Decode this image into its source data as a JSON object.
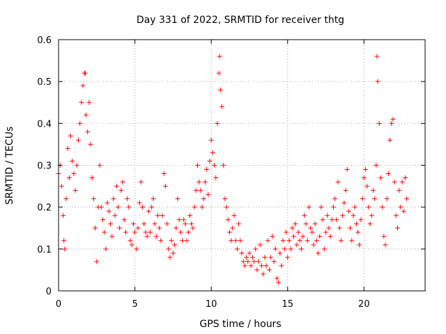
{
  "chart_data": {
    "type": "scatter",
    "title": "Day 331 of 2022, SRMTID for receiver thtg",
    "xlabel": "GPS time / hours",
    "ylabel": "SRMTID / TECUs",
    "xlim": [
      0,
      24
    ],
    "ylim": [
      0,
      0.6
    ],
    "xticks": [
      0,
      5,
      10,
      15,
      20
    ],
    "yticks": [
      0,
      0.1,
      0.2,
      0.3,
      0.4,
      0.5,
      0.6
    ],
    "xtick_labels": [
      "0",
      "5",
      "10",
      "15",
      "20"
    ],
    "ytick_labels": [
      "0",
      "0.1",
      "0.2",
      "0.3",
      "0.4",
      "0.5",
      "0.6"
    ],
    "grid": true,
    "marker": "+",
    "marker_color": "#ff0000",
    "series": [
      {
        "name": "SRMTID",
        "points": [
          [
            0.0,
            0.28
          ],
          [
            0.1,
            0.3
          ],
          [
            0.2,
            0.25
          ],
          [
            0.3,
            0.18
          ],
          [
            0.35,
            0.12
          ],
          [
            0.4,
            0.1
          ],
          [
            0.5,
            0.22
          ],
          [
            0.6,
            0.34
          ],
          [
            0.7,
            0.27
          ],
          [
            0.8,
            0.37
          ],
          [
            0.9,
            0.31
          ],
          [
            1.0,
            0.28
          ],
          [
            1.1,
            0.24
          ],
          [
            1.2,
            0.3
          ],
          [
            1.3,
            0.36
          ],
          [
            1.4,
            0.4
          ],
          [
            1.5,
            0.45
          ],
          [
            1.6,
            0.49
          ],
          [
            1.7,
            0.52
          ],
          [
            1.75,
            0.52
          ],
          [
            1.8,
            0.42
          ],
          [
            1.9,
            0.38
          ],
          [
            2.0,
            0.45
          ],
          [
            2.1,
            0.35
          ],
          [
            2.2,
            0.27
          ],
          [
            2.3,
            0.22
          ],
          [
            2.4,
            0.15
          ],
          [
            2.5,
            0.07
          ],
          [
            2.6,
            0.2
          ],
          [
            2.7,
            0.3
          ],
          [
            2.8,
            0.2
          ],
          [
            2.9,
            0.17
          ],
          [
            3.0,
            0.14
          ],
          [
            3.1,
            0.1
          ],
          [
            3.2,
            0.21
          ],
          [
            3.3,
            0.19
          ],
          [
            3.4,
            0.16
          ],
          [
            3.5,
            0.13
          ],
          [
            3.6,
            0.22
          ],
          [
            3.7,
            0.18
          ],
          [
            3.8,
            0.25
          ],
          [
            3.9,
            0.2
          ],
          [
            4.0,
            0.15
          ],
          [
            4.1,
            0.24
          ],
          [
            4.2,
            0.26
          ],
          [
            4.3,
            0.17
          ],
          [
            4.4,
            0.14
          ],
          [
            4.5,
            0.22
          ],
          [
            4.6,
            0.2
          ],
          [
            4.7,
            0.12
          ],
          [
            4.8,
            0.11
          ],
          [
            4.9,
            0.16
          ],
          [
            5.0,
            0.14
          ],
          [
            5.1,
            0.1
          ],
          [
            5.2,
            0.15
          ],
          [
            5.3,
            0.21
          ],
          [
            5.4,
            0.26
          ],
          [
            5.5,
            0.2
          ],
          [
            5.6,
            0.16
          ],
          [
            5.7,
            0.14
          ],
          [
            5.8,
            0.13
          ],
          [
            5.9,
            0.19
          ],
          [
            6.0,
            0.14
          ],
          [
            6.1,
            0.2
          ],
          [
            6.2,
            0.22
          ],
          [
            6.3,
            0.16
          ],
          [
            6.4,
            0.13
          ],
          [
            6.5,
            0.18
          ],
          [
            6.6,
            0.15
          ],
          [
            6.7,
            0.12
          ],
          [
            6.8,
            0.18
          ],
          [
            6.9,
            0.28
          ],
          [
            7.0,
            0.25
          ],
          [
            7.1,
            0.16
          ],
          [
            7.2,
            0.1
          ],
          [
            7.3,
            0.08
          ],
          [
            7.4,
            0.12
          ],
          [
            7.5,
            0.09
          ],
          [
            7.6,
            0.11
          ],
          [
            7.7,
            0.15
          ],
          [
            7.8,
            0.22
          ],
          [
            7.9,
            0.17
          ],
          [
            8.0,
            0.14
          ],
          [
            8.1,
            0.12
          ],
          [
            8.2,
            0.17
          ],
          [
            8.3,
            0.16
          ],
          [
            8.4,
            0.12
          ],
          [
            8.5,
            0.14
          ],
          [
            8.6,
            0.18
          ],
          [
            8.7,
            0.16
          ],
          [
            8.8,
            0.15
          ],
          [
            8.9,
            0.2
          ],
          [
            9.0,
            0.24
          ],
          [
            9.1,
            0.3
          ],
          [
            9.2,
            0.26
          ],
          [
            9.3,
            0.24
          ],
          [
            9.4,
            0.2
          ],
          [
            9.5,
            0.22
          ],
          [
            9.6,
            0.26
          ],
          [
            9.7,
            0.29
          ],
          [
            9.8,
            0.23
          ],
          [
            9.9,
            0.31
          ],
          [
            10.0,
            0.36
          ],
          [
            10.1,
            0.33
          ],
          [
            10.2,
            0.3
          ],
          [
            10.3,
            0.27
          ],
          [
            10.4,
            0.4
          ],
          [
            10.5,
            0.52
          ],
          [
            10.55,
            0.56
          ],
          [
            10.6,
            0.48
          ],
          [
            10.7,
            0.44
          ],
          [
            10.8,
            0.3
          ],
          [
            10.9,
            0.22
          ],
          [
            11.0,
            0.2
          ],
          [
            11.1,
            0.17
          ],
          [
            11.2,
            0.14
          ],
          [
            11.3,
            0.12
          ],
          [
            11.4,
            0.15
          ],
          [
            11.5,
            0.18
          ],
          [
            11.6,
            0.12
          ],
          [
            11.7,
            0.1
          ],
          [
            11.8,
            0.16
          ],
          [
            11.9,
            0.12
          ],
          [
            12.0,
            0.09
          ],
          [
            12.1,
            0.07
          ],
          [
            12.2,
            0.06
          ],
          [
            12.3,
            0.08
          ],
          [
            12.4,
            0.07
          ],
          [
            12.5,
            0.09
          ],
          [
            12.6,
            0.06
          ],
          [
            12.7,
            0.08
          ],
          [
            12.8,
            0.07
          ],
          [
            12.9,
            0.1
          ],
          [
            13.0,
            0.05
          ],
          [
            13.1,
            0.07
          ],
          [
            13.2,
            0.11
          ],
          [
            13.3,
            0.06
          ],
          [
            13.4,
            0.04
          ],
          [
            13.5,
            0.08
          ],
          [
            13.6,
            0.06
          ],
          [
            13.7,
            0.12
          ],
          [
            13.8,
            0.05
          ],
          [
            13.9,
            0.08
          ],
          [
            14.0,
            0.13
          ],
          [
            14.1,
            0.07
          ],
          [
            14.2,
            0.1
          ],
          [
            14.3,
            0.03
          ],
          [
            14.4,
            0.02
          ],
          [
            14.5,
            0.09
          ],
          [
            14.6,
            0.06
          ],
          [
            14.7,
            0.12
          ],
          [
            14.8,
            0.1
          ],
          [
            14.9,
            0.14
          ],
          [
            15.0,
            0.08
          ],
          [
            15.1,
            0.12
          ],
          [
            15.2,
            0.1
          ],
          [
            15.3,
            0.15
          ],
          [
            15.4,
            0.13
          ],
          [
            15.5,
            0.16
          ],
          [
            15.6,
            0.11
          ],
          [
            15.7,
            0.14
          ],
          [
            15.8,
            0.12
          ],
          [
            15.9,
            0.1
          ],
          [
            16.0,
            0.13
          ],
          [
            16.1,
            0.18
          ],
          [
            16.2,
            0.16
          ],
          [
            16.3,
            0.12
          ],
          [
            16.4,
            0.2
          ],
          [
            16.5,
            0.15
          ],
          [
            16.6,
            0.14
          ],
          [
            16.7,
            0.11
          ],
          [
            16.8,
            0.16
          ],
          [
            16.9,
            0.12
          ],
          [
            17.0,
            0.09
          ],
          [
            17.1,
            0.13
          ],
          [
            17.2,
            0.2
          ],
          [
            17.3,
            0.17
          ],
          [
            17.4,
            0.1
          ],
          [
            17.5,
            0.14
          ],
          [
            17.6,
            0.18
          ],
          [
            17.7,
            0.15
          ],
          [
            17.8,
            0.13
          ],
          [
            17.9,
            0.17
          ],
          [
            18.0,
            0.2
          ],
          [
            18.1,
            0.22
          ],
          [
            18.2,
            0.17
          ],
          [
            18.3,
            0.26
          ],
          [
            18.4,
            0.15
          ],
          [
            18.5,
            0.12
          ],
          [
            18.6,
            0.18
          ],
          [
            18.7,
            0.21
          ],
          [
            18.8,
            0.24
          ],
          [
            18.9,
            0.29
          ],
          [
            19.0,
            0.19
          ],
          [
            19.1,
            0.15
          ],
          [
            19.2,
            0.12
          ],
          [
            19.3,
            0.18
          ],
          [
            19.4,
            0.2
          ],
          [
            19.5,
            0.16
          ],
          [
            19.6,
            0.14
          ],
          [
            19.7,
            0.11
          ],
          [
            19.8,
            0.17
          ],
          [
            19.9,
            0.22
          ],
          [
            20.0,
            0.27
          ],
          [
            20.1,
            0.29
          ],
          [
            20.2,
            0.25
          ],
          [
            20.3,
            0.2
          ],
          [
            20.4,
            0.16
          ],
          [
            20.5,
            0.18
          ],
          [
            20.6,
            0.24
          ],
          [
            20.7,
            0.22
          ],
          [
            20.8,
            0.3
          ],
          [
            20.85,
            0.56
          ],
          [
            20.9,
            0.5
          ],
          [
            21.0,
            0.4
          ],
          [
            21.1,
            0.27
          ],
          [
            21.2,
            0.2
          ],
          [
            21.3,
            0.13
          ],
          [
            21.4,
            0.11
          ],
          [
            21.5,
            0.22
          ],
          [
            21.6,
            0.28
          ],
          [
            21.7,
            0.36
          ],
          [
            21.8,
            0.4
          ],
          [
            21.9,
            0.41
          ],
          [
            22.0,
            0.26
          ],
          [
            22.1,
            0.18
          ],
          [
            22.2,
            0.15
          ],
          [
            22.3,
            0.24
          ],
          [
            22.4,
            0.2
          ],
          [
            22.5,
            0.26
          ],
          [
            22.6,
            0.19
          ],
          [
            22.7,
            0.27
          ],
          [
            22.8,
            0.22
          ]
        ]
      }
    ]
  }
}
